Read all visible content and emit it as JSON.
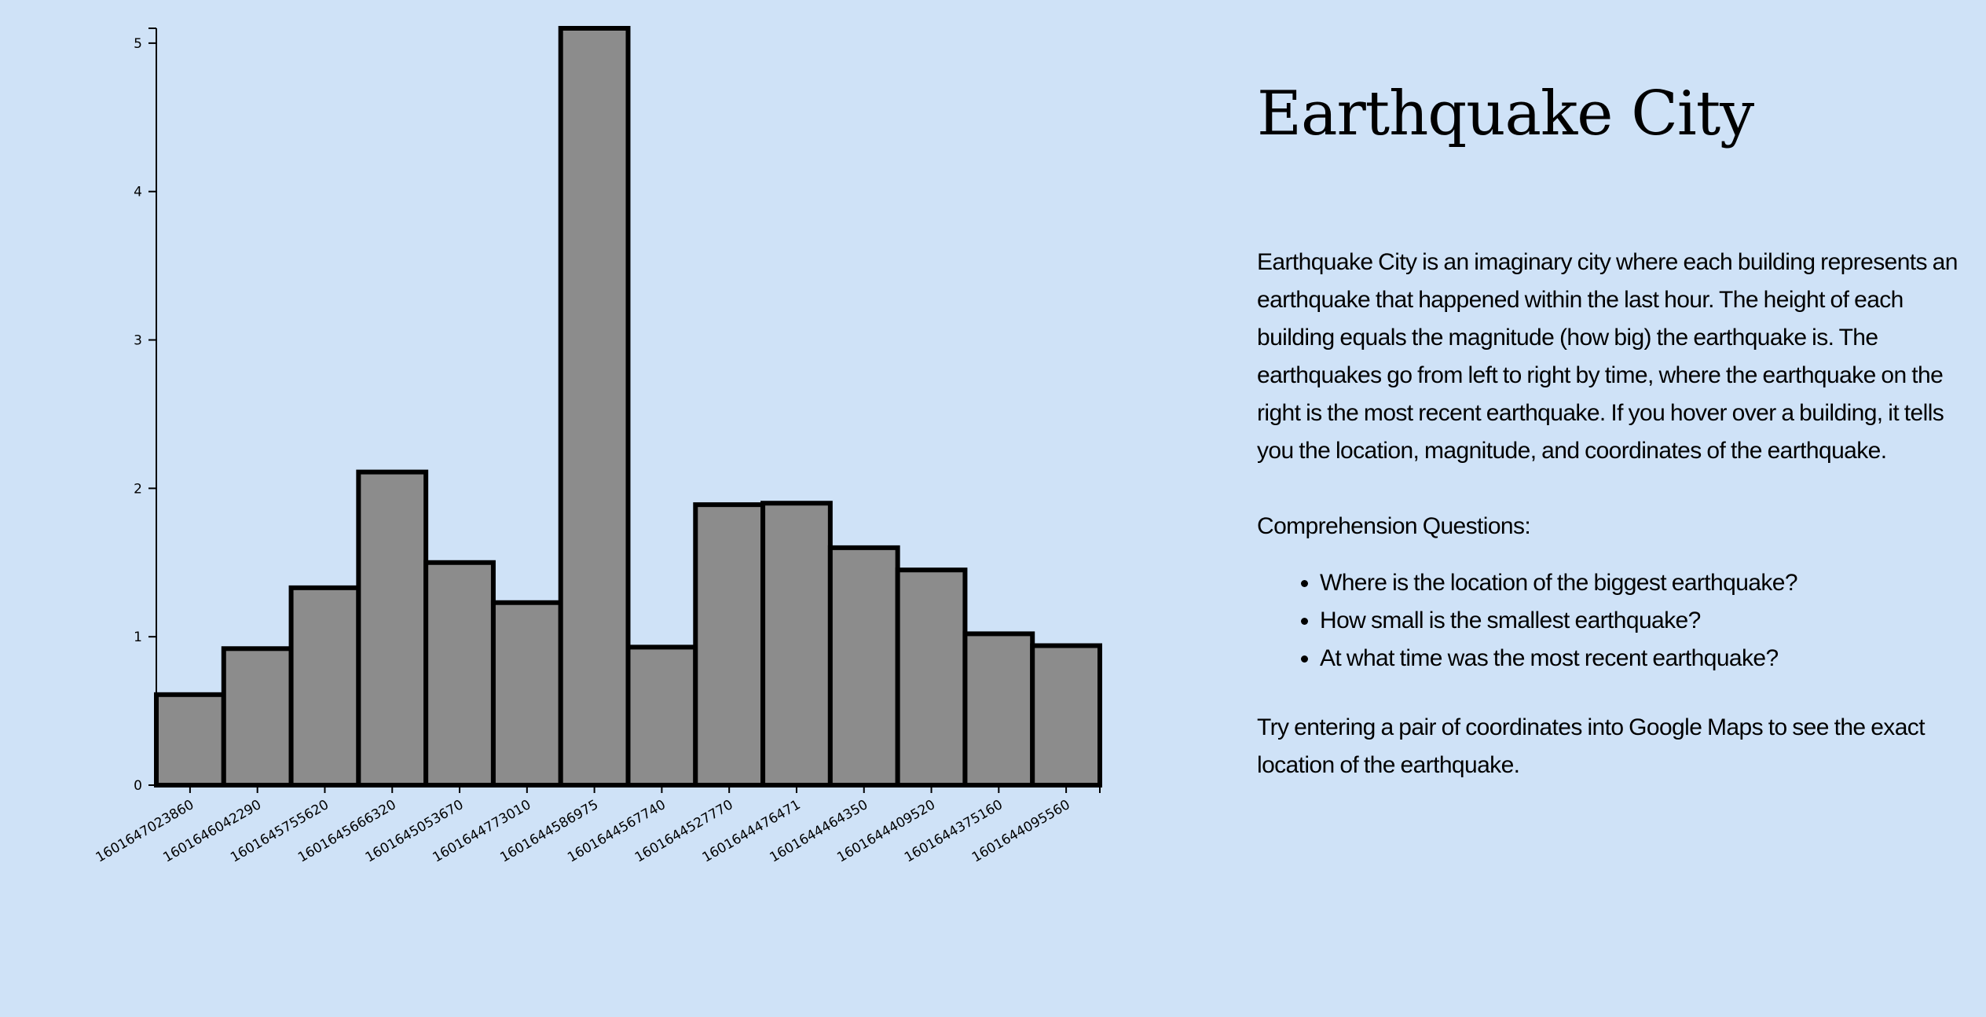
{
  "page": {
    "title": "Earthquake City",
    "intro": "Earthquake City is an imaginary city where each building represents an earthquake that happened within the last hour. The height of each building equals the magnitude (how big) the earthquake is. The earthquakes go from left to right by time, where the earthquake on the right is the most recent earthquake. If you hover over a building, it tells you the location, magnitude, and coordinates of the earthquake.",
    "questions_heading": "Comprehension Questions:",
    "questions": [
      "Where is the location of the biggest earthquake?",
      "How small is the smallest earthquake?",
      "At what time was the most recent earthquake?"
    ],
    "closing": "Try entering a pair of coordinates into Google Maps to see the exact location of the earthquake."
  },
  "colors": {
    "background": "#cfe2f7",
    "bar_fill": "#8c8c8c",
    "bar_stroke": "#000000"
  },
  "chart_data": {
    "type": "bar",
    "title": "",
    "xlabel": "",
    "ylabel": "",
    "ylim": [
      0,
      5.1
    ],
    "yticks": [
      "0",
      "1",
      "2",
      "3",
      "4",
      "5"
    ],
    "categories": [
      "1601647023860",
      "1601646042290",
      "1601645755620",
      "1601645666320",
      "1601645053670",
      "1601644773010",
      "1601644586975",
      "1601644567740",
      "1601644527770",
      "1601644476471",
      "1601644464350",
      "1601644409520",
      "1601644375160",
      "1601644095560"
    ],
    "values": [
      0.61,
      0.92,
      1.33,
      2.11,
      1.5,
      1.23,
      5.1,
      0.93,
      1.89,
      1.9,
      1.6,
      1.45,
      1.02,
      0.94
    ],
    "grid": false,
    "legend": "none"
  }
}
